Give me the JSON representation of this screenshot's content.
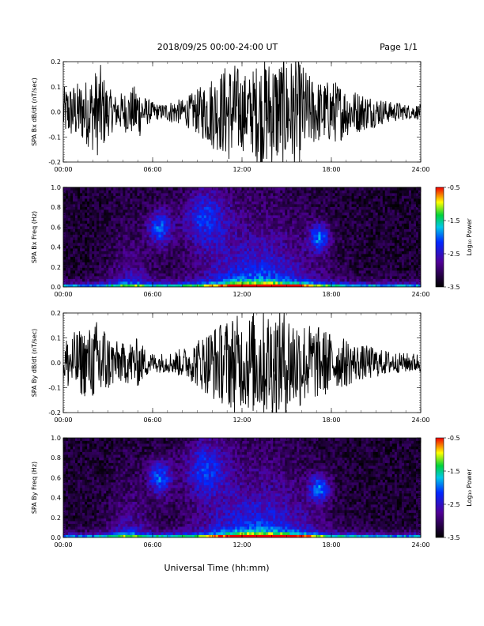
{
  "header": {
    "title": "2018/09/25  00:00-24:00 UT",
    "page": "Page 1/1"
  },
  "xaxis": {
    "label": "Universal Time (hh:mm)",
    "ticks": [
      "00:00",
      "06:00",
      "12:00",
      "18:00",
      "24:00"
    ],
    "range_hours": [
      0,
      24
    ]
  },
  "chart_data": [
    {
      "type": "line",
      "ylabel": "SPA Bx dB/dt (nT/sec)",
      "ylim": [
        -0.2,
        0.2
      ],
      "yticks": [
        "0.2",
        "0.1",
        "0.0",
        "-0.1",
        "-0.2"
      ],
      "x_range": [
        "00:00",
        "24:00"
      ],
      "series_color": "#000000",
      "envelope": {
        "hours": [
          0,
          0.5,
          1,
          1.5,
          2,
          2.5,
          3,
          3.5,
          4,
          4.5,
          5,
          5.5,
          6,
          6.5,
          7,
          7.5,
          8,
          8.5,
          9,
          9.5,
          10,
          10.5,
          11,
          11.5,
          12,
          12.5,
          13,
          13.5,
          14,
          14.5,
          15,
          15.5,
          16,
          16.5,
          17,
          17.5,
          18,
          18.5,
          19,
          19.5,
          20,
          20.5,
          21,
          21.5,
          22,
          22.5,
          23,
          23.5,
          24
        ],
        "amplitude": [
          0.1,
          0.11,
          0.12,
          0.13,
          0.16,
          0.19,
          0.1,
          0.07,
          0.08,
          0.09,
          0.12,
          0.06,
          0.04,
          0.03,
          0.04,
          0.05,
          0.05,
          0.07,
          0.09,
          0.12,
          0.15,
          0.16,
          0.2,
          0.2,
          0.16,
          0.15,
          0.2,
          0.22,
          0.22,
          0.22,
          0.22,
          0.22,
          0.2,
          0.15,
          0.13,
          0.12,
          0.13,
          0.12,
          0.1,
          0.09,
          0.08,
          0.07,
          0.06,
          0.05,
          0.04,
          0.04,
          0.03,
          0.03,
          0.03
        ]
      }
    },
    {
      "type": "heatmap",
      "ylabel": "SPA Bx Freq (Hz)",
      "ylim": [
        0.0,
        1.0
      ],
      "yticks": [
        "1.0",
        "0.8",
        "0.6",
        "0.4",
        "0.2",
        "0.0"
      ],
      "colorbar": {
        "label": "Log₁₀ Power",
        "range": [
          -3.5,
          -0.5
        ],
        "ticks": [
          "-0.5",
          "-1.5",
          "-2.5",
          "-3.5"
        ]
      },
      "x_range": [
        "00:00",
        "24:00"
      ]
    },
    {
      "type": "line",
      "ylabel": "SPA By dB/dt (nT/sec)",
      "ylim": [
        -0.2,
        0.2
      ],
      "yticks": [
        "0.2",
        "0.1",
        "0.0",
        "-0.1",
        "-0.2"
      ],
      "x_range": [
        "00:00",
        "24:00"
      ],
      "series_color": "#000000",
      "envelope": {
        "hours": [
          0,
          0.5,
          1,
          1.5,
          2,
          2.5,
          3,
          3.5,
          4,
          4.5,
          5,
          5.5,
          6,
          6.5,
          7,
          7.5,
          8,
          8.5,
          9,
          9.5,
          10,
          10.5,
          11,
          11.5,
          12,
          12.5,
          13,
          13.5,
          14,
          14.5,
          15,
          15.5,
          16,
          16.5,
          17,
          17.5,
          18,
          18.5,
          19,
          19.5,
          20,
          20.5,
          21,
          21.5,
          22,
          22.5,
          23,
          23.5,
          24
        ],
        "amplitude": [
          0.1,
          0.12,
          0.13,
          0.14,
          0.15,
          0.2,
          0.12,
          0.09,
          0.08,
          0.09,
          0.1,
          0.06,
          0.04,
          0.04,
          0.04,
          0.05,
          0.06,
          0.07,
          0.1,
          0.12,
          0.15,
          0.16,
          0.18,
          0.2,
          0.18,
          0.2,
          0.22,
          0.22,
          0.22,
          0.22,
          0.22,
          0.2,
          0.18,
          0.16,
          0.15,
          0.14,
          0.12,
          0.1,
          0.1,
          0.08,
          0.07,
          0.07,
          0.06,
          0.05,
          0.05,
          0.04,
          0.04,
          0.04,
          0.04
        ]
      }
    },
    {
      "type": "heatmap",
      "ylabel": "SPA By Freq (Hz)",
      "ylim": [
        0.0,
        1.0
      ],
      "yticks": [
        "1.0",
        "0.8",
        "0.6",
        "0.4",
        "0.2",
        "0.0"
      ],
      "colorbar": {
        "label": "Log₁₀ Power",
        "range": [
          -3.5,
          -0.5
        ],
        "ticks": [
          "-0.5",
          "-1.5",
          "-2.5",
          "-3.5"
        ]
      },
      "x_range": [
        "00:00",
        "24:00"
      ]
    }
  ]
}
